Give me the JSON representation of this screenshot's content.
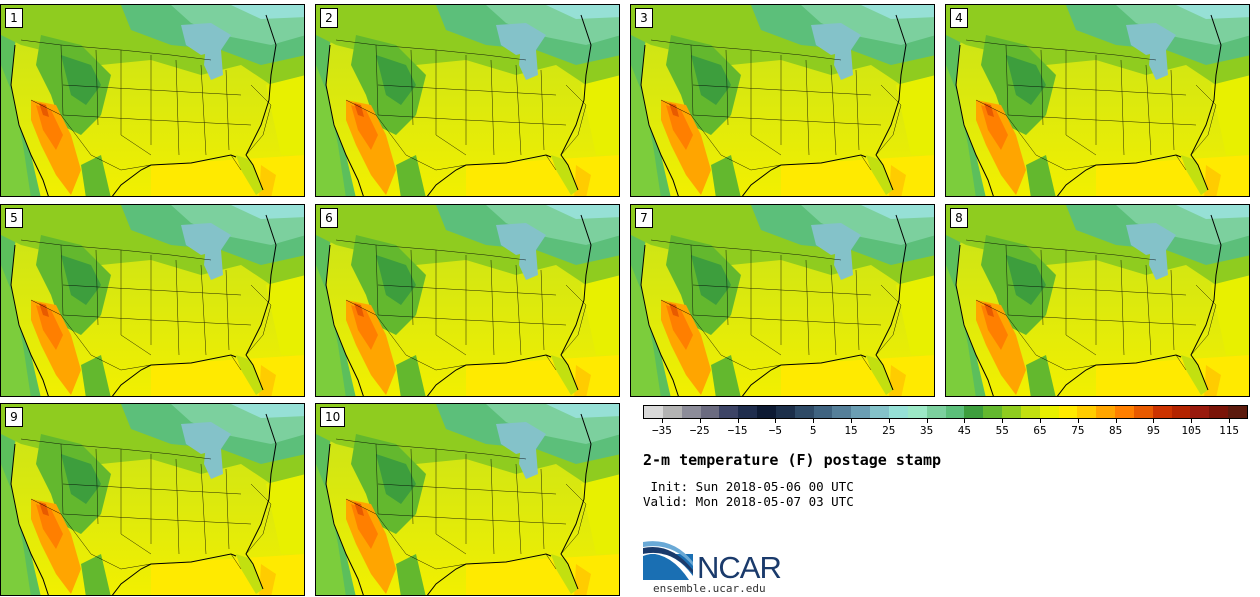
{
  "panels": [
    "1",
    "2",
    "3",
    "4",
    "5",
    "6",
    "7",
    "8",
    "9",
    "10"
  ],
  "colorbar": {
    "colors": [
      "#d9d9d9",
      "#b3b3b3",
      "#8c8c99",
      "#6b6b80",
      "#3d4466",
      "#1f2d4d",
      "#0d1a33",
      "#1c2f4a",
      "#2e4a66",
      "#3f6380",
      "#557f99",
      "#6b9eb3",
      "#84c2c9",
      "#96e0d6",
      "#9ce8c6",
      "#7cd09e",
      "#5cbf7a",
      "#3d9e3d",
      "#63b82e",
      "#8fcc1f",
      "#c2e010",
      "#e8f000",
      "#ffea00",
      "#ffcc00",
      "#ffa500",
      "#ff7f00",
      "#e85a00",
      "#cc3300",
      "#b32400",
      "#991a0d",
      "#7a1408",
      "#5c1a0d"
    ],
    "tick_labels": [
      "−35",
      "−25",
      "−15",
      "−5",
      "5",
      "15",
      "25",
      "35",
      "45",
      "55",
      "65",
      "75",
      "85",
      "95",
      "105",
      "115"
    ],
    "range": [
      -40,
      120
    ],
    "tick_values": [
      -35,
      -25,
      -15,
      -5,
      5,
      15,
      25,
      35,
      45,
      55,
      65,
      75,
      85,
      95,
      105,
      115
    ]
  },
  "title": "2-m temperature (F) postage stamp",
  "init": " Init: Sun 2018-05-06 00 UTC",
  "valid": "Valid: Mon 2018-05-07 03 UTC",
  "logo_text": "NCAR",
  "site": "ensemble.ucar.edu"
}
